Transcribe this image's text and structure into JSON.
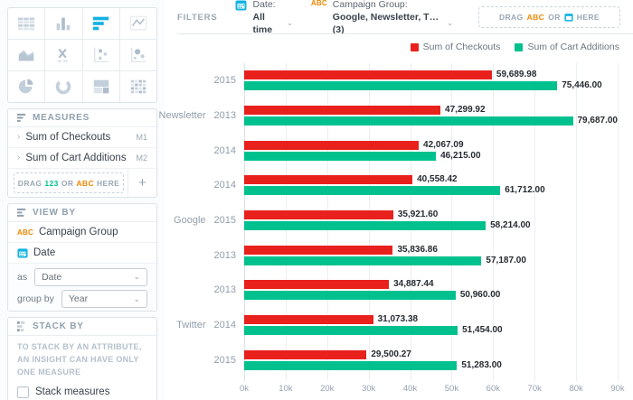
{
  "colors": {
    "accent": "#14b2e2",
    "checkouts_red": "#e8211d",
    "cart_additions_green": "#00c18e",
    "abc_orange": "#f18701",
    "num_green": "#00c18e"
  },
  "sidebar": {
    "vis_types": [
      {
        "name": "table",
        "selected": false
      },
      {
        "name": "column-chart",
        "selected": false
      },
      {
        "name": "bar-chart",
        "selected": true
      },
      {
        "name": "line-chart",
        "selected": false
      },
      {
        "name": "area-chart",
        "selected": false
      },
      {
        "name": "headline",
        "selected": false
      },
      {
        "name": "scatter-plot",
        "selected": false
      },
      {
        "name": "bubble-chart",
        "selected": false
      },
      {
        "name": "pie-chart",
        "selected": false
      },
      {
        "name": "donut-chart",
        "selected": false
      },
      {
        "name": "treemap",
        "selected": false
      },
      {
        "name": "heatmap",
        "selected": false
      }
    ],
    "measures": {
      "title": "MEASURES",
      "items": [
        {
          "label": "Sum of Checkouts",
          "badge": "M1"
        },
        {
          "label": "Sum of Cart Additions",
          "badge": "M2"
        }
      ],
      "drop_zone": {
        "word1": "DRAG",
        "token_num": "123",
        "word2": "OR",
        "token_abc": "ABC",
        "word3": "HERE"
      },
      "add_button_label": "+"
    },
    "view_by": {
      "title": "VIEW BY",
      "items": [
        {
          "icon": "abc",
          "label": "Campaign Group"
        },
        {
          "icon": "calendar",
          "label": "Date"
        }
      ],
      "as_label": "as",
      "as_value": "Date",
      "group_by_label": "group by",
      "group_by_value": "Year"
    },
    "stack_by": {
      "title": "STACK BY",
      "helper_text": "TO STACK BY AN ATTRIBUTE, AN INSIGHT CAN HAVE ONLY ONE MEASURE",
      "checkbox_label": "Stack measures",
      "checkbox_checked": false
    }
  },
  "filters": {
    "title": "FILTERS",
    "date_filter": {
      "label": "Date:",
      "value": "All time"
    },
    "attribute_filter": {
      "label": "Campaign Group:",
      "value": "Google, Newsletter, T… (3)"
    },
    "drop_zone": {
      "word1": "DRAG",
      "token_abc": "ABC",
      "word2": "OR",
      "word3": "HERE"
    }
  },
  "chart_data": {
    "type": "bar",
    "orientation": "horizontal",
    "legend_position": "top-right",
    "grid": true,
    "series": [
      {
        "name": "Sum of Checkouts",
        "color": "#e8211d"
      },
      {
        "name": "Sum of Cart Additions",
        "color": "#00c18e"
      }
    ],
    "xlim": [
      0,
      90000
    ],
    "x_ticks": [
      "0k",
      "10k",
      "20k",
      "30k",
      "40k",
      "50k",
      "60k",
      "70k",
      "80k",
      "90k"
    ],
    "rows": [
      {
        "group": "Newsletter",
        "group_label": "",
        "year": "2015",
        "values": [
          59689.98,
          75446.0
        ],
        "labels": [
          "59,689.98",
          "75,446.00"
        ]
      },
      {
        "group": "Newsletter",
        "group_label": "Newsletter",
        "year": "2013",
        "values": [
          47299.92,
          79687.0
        ],
        "labels": [
          "47,299.92",
          "79,687.00"
        ]
      },
      {
        "group": "Newsletter",
        "group_label": "",
        "year": "2014",
        "values": [
          42067.09,
          46215.0
        ],
        "labels": [
          "42,067.09",
          "46,215.00"
        ]
      },
      {
        "group": "Google",
        "group_label": "",
        "year": "2014",
        "values": [
          40558.42,
          61712.0
        ],
        "labels": [
          "40,558.42",
          "61,712.00"
        ]
      },
      {
        "group": "Google",
        "group_label": "Google",
        "year": "2015",
        "values": [
          35921.6,
          58214.0
        ],
        "labels": [
          "35,921.60",
          "58,214.00"
        ]
      },
      {
        "group": "Google",
        "group_label": "",
        "year": "2013",
        "values": [
          35836.86,
          57187.0
        ],
        "labels": [
          "35,836.86",
          "57,187.00"
        ]
      },
      {
        "group": "Twitter",
        "group_label": "",
        "year": "2013",
        "values": [
          34887.44,
          50960.0
        ],
        "labels": [
          "34,887.44",
          "50,960.00"
        ]
      },
      {
        "group": "Twitter",
        "group_label": "Twitter",
        "year": "2014",
        "values": [
          31073.38,
          51454.0
        ],
        "labels": [
          "31,073.38",
          "51,454.00"
        ]
      },
      {
        "group": "Twitter",
        "group_label": "",
        "year": "2015",
        "values": [
          29500.27,
          51283.0
        ],
        "labels": [
          "29,500.27",
          "51,283.00"
        ]
      }
    ]
  }
}
